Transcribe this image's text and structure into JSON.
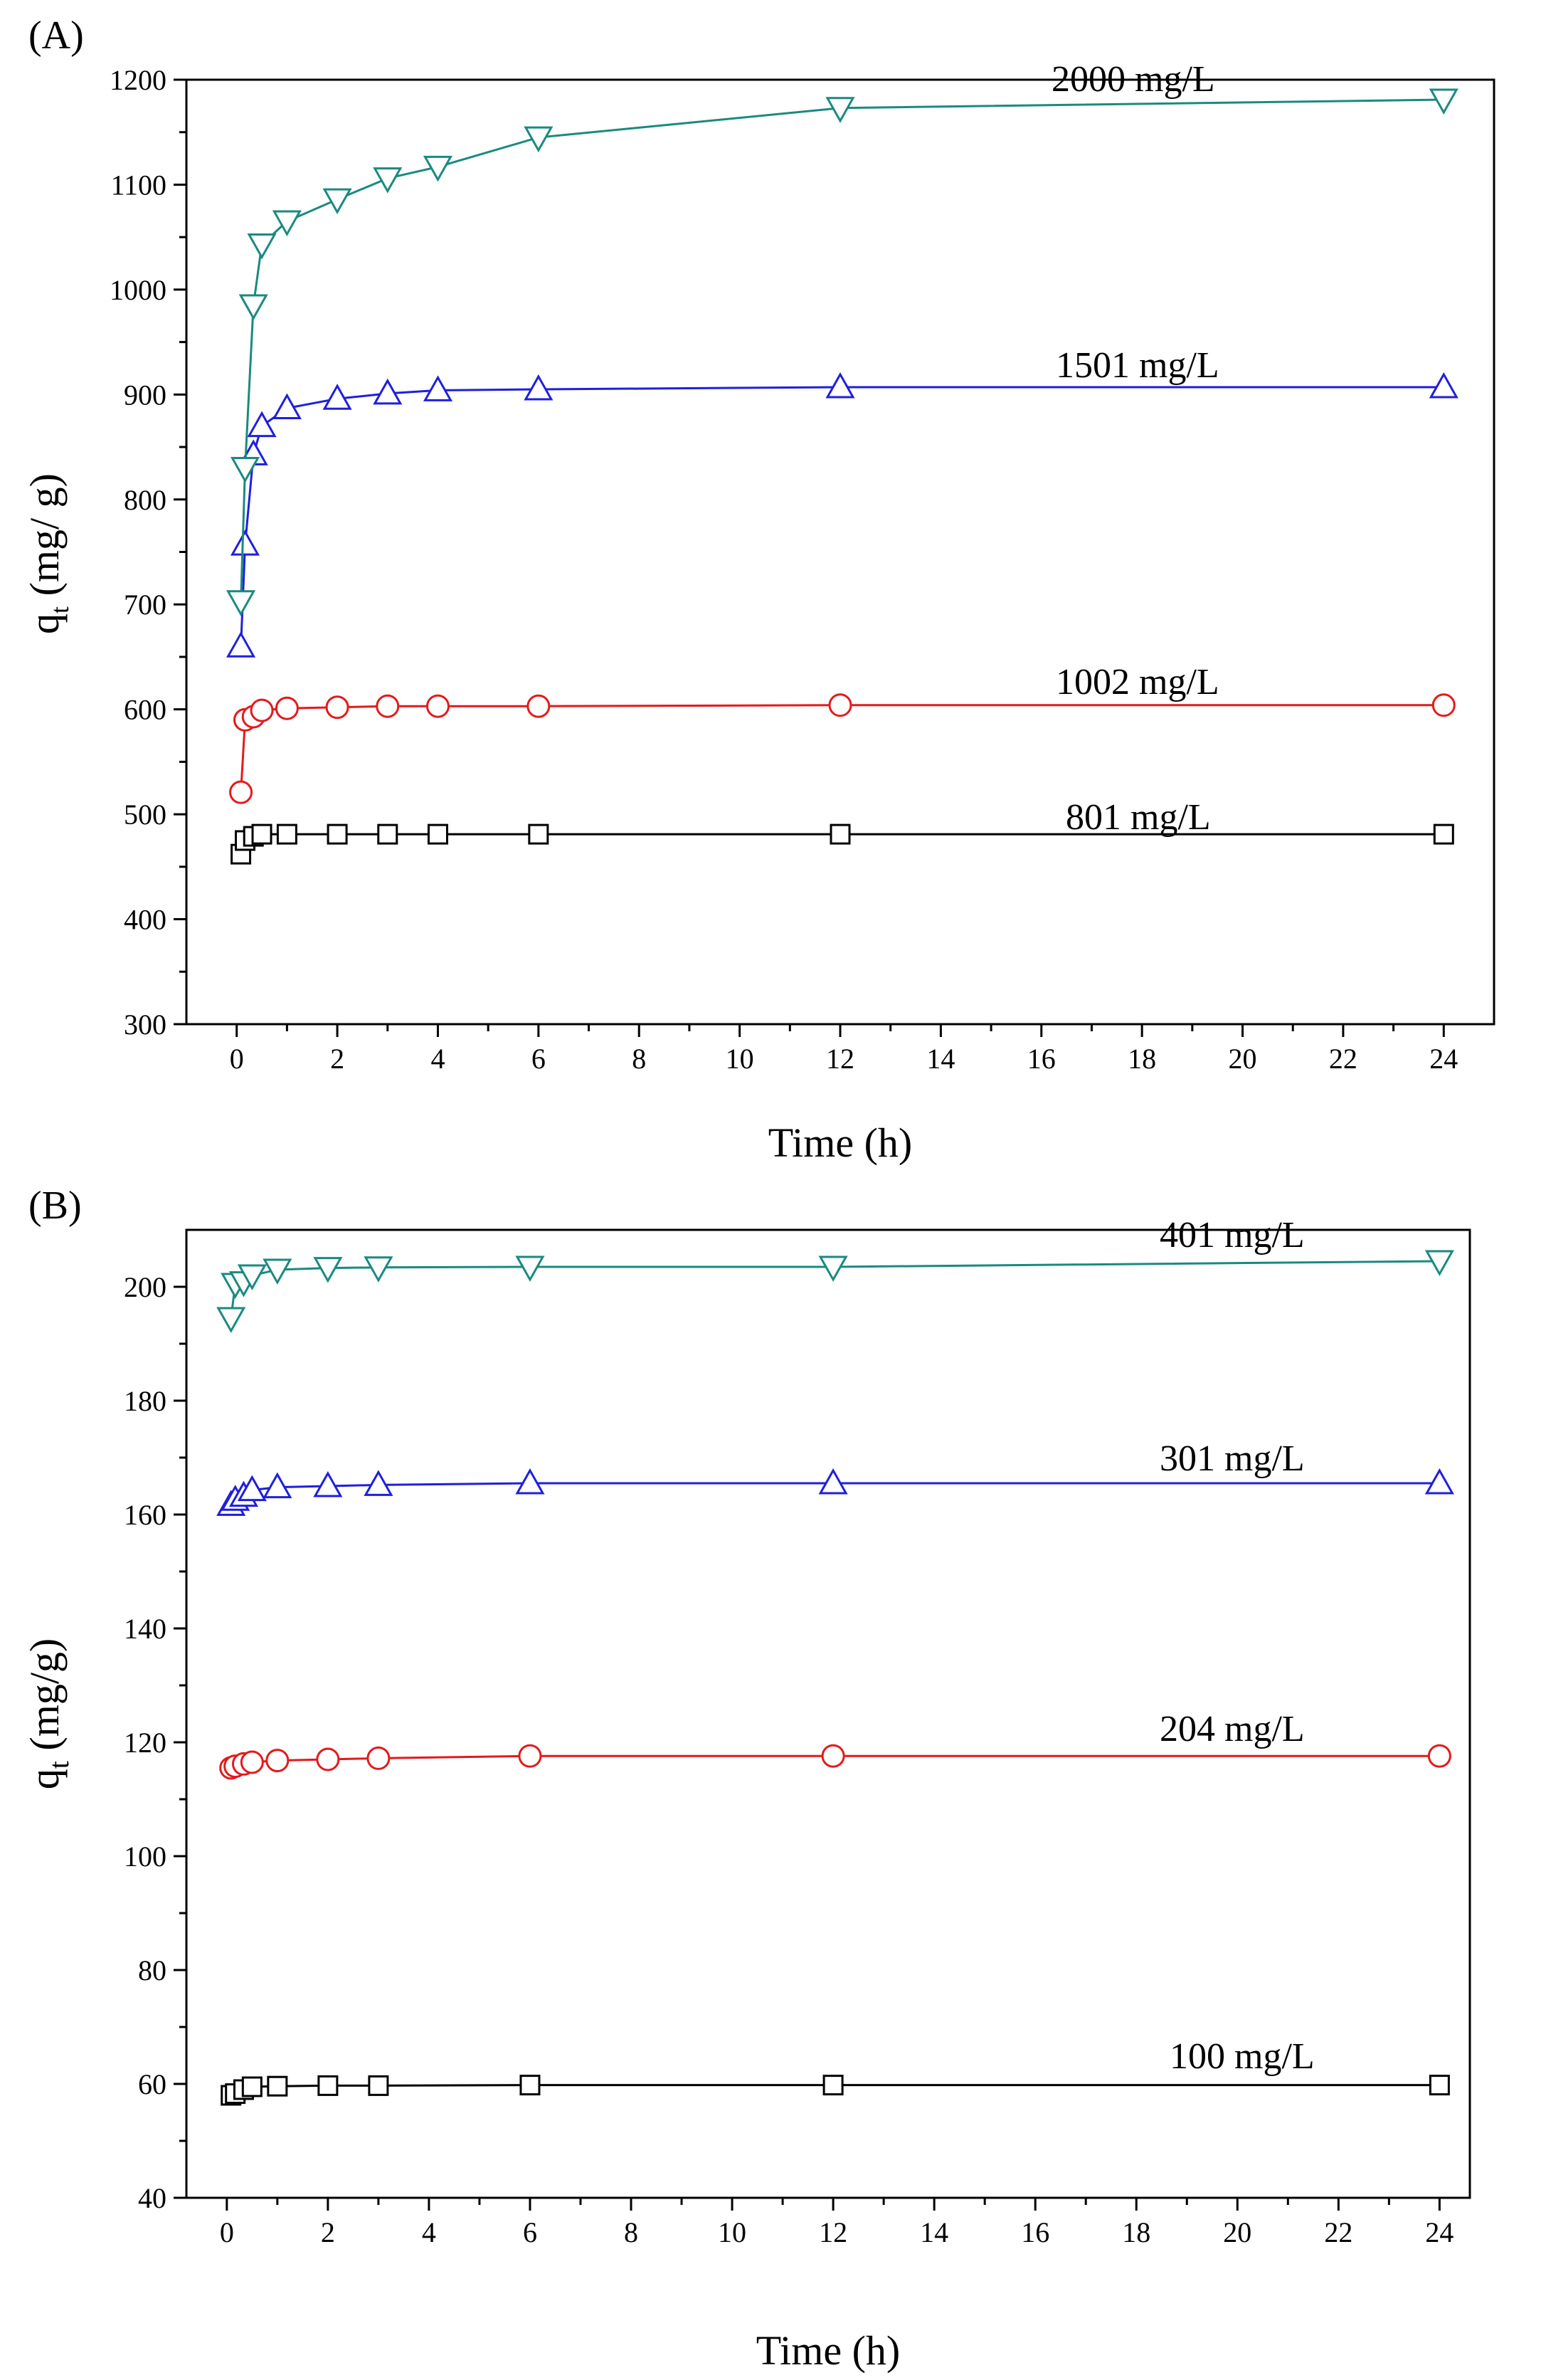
{
  "figure": {
    "panels": [
      {
        "id": "A",
        "label": "(A)",
        "xlabel": "Time (h)",
        "ylabel_main": "q",
        "ylabel_sub": "t",
        "ylabel_rest": " (mg/ g)"
      },
      {
        "id": "B",
        "label": "(B)",
        "xlabel": "Time (h)",
        "ylabel_main": "q",
        "ylabel_sub": "t",
        "ylabel_rest": " (mg/g)"
      }
    ]
  },
  "chart_data": [
    {
      "type": "line",
      "panel": "(A)",
      "xlabel": "Time (h)",
      "ylabel": "qt (mg/ g)",
      "xlim": [
        -1,
        25
      ],
      "ylim": [
        300,
        1200
      ],
      "xticks": [
        0,
        2,
        4,
        6,
        8,
        10,
        12,
        14,
        16,
        18,
        20,
        22,
        24
      ],
      "yticks": [
        300,
        400,
        500,
        600,
        700,
        800,
        900,
        1000,
        1100,
        1200
      ],
      "grid": false,
      "series": [
        {
          "name": "801 mg/L",
          "marker": "square",
          "color": "#000000",
          "x": [
            0.083,
            0.167,
            0.333,
            0.5,
            1,
            2,
            3,
            4,
            6,
            12,
            24
          ],
          "y": [
            462,
            475,
            479,
            481,
            481,
            481,
            481,
            481,
            481,
            481,
            481
          ]
        },
        {
          "name": "1002 mg/L",
          "marker": "circle",
          "color": "#e31a1c",
          "x": [
            0.083,
            0.167,
            0.333,
            0.5,
            1,
            2,
            3,
            4,
            6,
            12,
            24
          ],
          "y": [
            521,
            590,
            593,
            599,
            601,
            602,
            603,
            603,
            603,
            604,
            604
          ]
        },
        {
          "name": "1501 mg/L",
          "marker": "triangle-up",
          "color": "#1f1fdd",
          "x": [
            0.083,
            0.167,
            0.333,
            0.5,
            1,
            2,
            3,
            4,
            6,
            12,
            24
          ],
          "y": [
            660,
            757,
            843,
            870,
            887,
            896,
            901,
            904,
            905,
            907,
            907
          ]
        },
        {
          "name": "2000 mg/L",
          "marker": "triangle-down",
          "color": "#1a8a80",
          "x": [
            0.083,
            0.167,
            0.333,
            0.5,
            1,
            2,
            3,
            4,
            6,
            12,
            24
          ],
          "y": [
            703,
            830,
            985,
            1043,
            1065,
            1086,
            1106,
            1117,
            1145,
            1173,
            1181
          ]
        }
      ]
    },
    {
      "type": "line",
      "panel": "(B)",
      "xlabel": "Time (h)",
      "ylabel": "qt (mg/g)",
      "xlim": [
        -0.8,
        24.6
      ],
      "ylim": [
        40,
        210
      ],
      "xticks": [
        0,
        2,
        4,
        6,
        8,
        10,
        12,
        14,
        16,
        18,
        20,
        22,
        24
      ],
      "yticks": [
        40,
        60,
        80,
        100,
        120,
        140,
        160,
        180,
        200
      ],
      "grid": false,
      "series": [
        {
          "name": "100 mg/L",
          "marker": "square",
          "color": "#000000",
          "x": [
            0.083,
            0.167,
            0.333,
            0.5,
            1,
            2,
            3,
            6,
            12,
            24
          ],
          "y": [
            58.0,
            58.3,
            59.0,
            59.5,
            59.6,
            59.7,
            59.7,
            59.8,
            59.8,
            59.8
          ]
        },
        {
          "name": "204 mg/L",
          "marker": "circle",
          "color": "#e31a1c",
          "x": [
            0.083,
            0.167,
            0.333,
            0.5,
            1,
            2,
            3,
            6,
            12,
            24
          ],
          "y": [
            115.5,
            115.8,
            116.2,
            116.5,
            116.8,
            117.0,
            117.2,
            117.6,
            117.6,
            117.6
          ]
        },
        {
          "name": "301 mg/L",
          "marker": "triangle-up",
          "color": "#1f1fdd",
          "x": [
            0.083,
            0.167,
            0.333,
            0.5,
            1,
            2,
            3,
            6,
            12,
            24
          ],
          "y": [
            161.7,
            162.6,
            163.3,
            164.3,
            164.8,
            165.0,
            165.2,
            165.5,
            165.5,
            165.5
          ]
        },
        {
          "name": "401 mg/L",
          "marker": "triangle-down",
          "color": "#1a8a80",
          "x": [
            0.083,
            0.167,
            0.333,
            0.5,
            1,
            2,
            3,
            6,
            12,
            24
          ],
          "y": [
            194.5,
            200.5,
            200.8,
            202.0,
            203.0,
            203.3,
            203.4,
            203.5,
            203.5,
            204.5
          ]
        }
      ]
    }
  ]
}
